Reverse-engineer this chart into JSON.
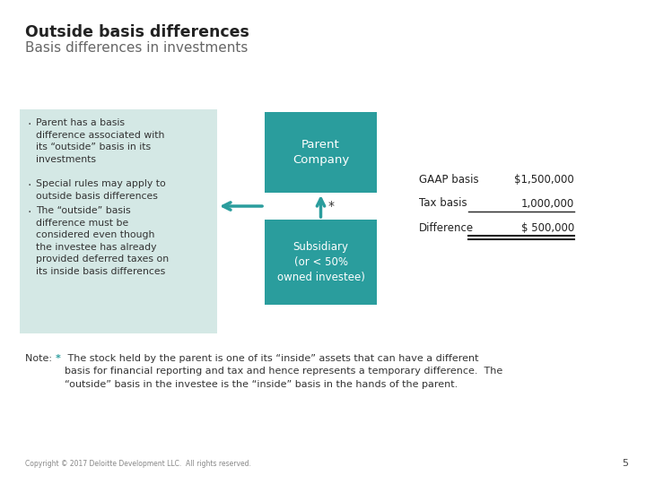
{
  "title": "Outside basis differences",
  "subtitle": "Basis differences in investments",
  "title_color": "#222222",
  "subtitle_color": "#666666",
  "bg_color": "#ffffff",
  "bullet_box_color": "#d4e8e5",
  "teal_color": "#2a9d9d",
  "bullet_wrap1": "Parent has a basis\ndifference associated with\nits “outside” basis in its\ninvestments",
  "bullet_wrap2": "Special rules may apply to\noutside basis differences",
  "bullet_wrap3": "The “outside” basis\ndifference must be\nconsidered even though\nthe investee has already\nprovided deferred taxes on\nits inside basis differences",
  "parent_label": "Parent\nCompany",
  "subsidiary_label": "Subsidiary\n(or < 50%\nowned investee)",
  "gaap_label": "GAAP basis",
  "gaap_value": "$1,500,000",
  "tax_label": "Tax basis",
  "tax_value": "1,000,000",
  "diff_label": "Difference",
  "diff_value": "$ 500,000",
  "note_star": "*",
  "note_text": " The stock held by the parent is one of its “inside” assets that can have a different\nbasis for financial reporting and tax and hence represents a temporary difference.  The\n“outside” basis in the investee is the “inside” basis in the hands of the parent.",
  "copyright_text": "Copyright © 2017 Deloitte Development LLC.  All rights reserved.",
  "page_number": "5"
}
